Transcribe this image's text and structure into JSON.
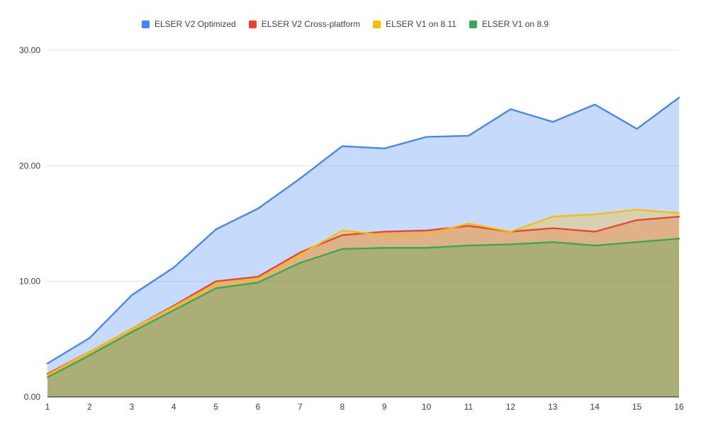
{
  "chart_data": {
    "type": "area",
    "title": "",
    "xlabel": "",
    "ylabel": "",
    "grid": true,
    "legend_position": "top",
    "fill_opacity": 0.3,
    "background_color": "#ffffff",
    "gridline_color": "#e3e3e3",
    "axis_color": "#424242",
    "ylim": [
      0,
      30
    ],
    "y_ticks": [
      {
        "value": 30,
        "label": "30.00"
      },
      {
        "value": 20,
        "label": "20.00"
      },
      {
        "value": 10,
        "label": "10.00"
      },
      {
        "value": 0,
        "label": "0.00"
      }
    ],
    "categories": [
      "1",
      "2",
      "3",
      "4",
      "5",
      "6",
      "7",
      "8",
      "9",
      "10",
      "11",
      "12",
      "13",
      "14",
      "15",
      "16"
    ],
    "series": [
      {
        "name": "ELSER V2 Optimized",
        "color": "#4285F4",
        "values": [
          2.9,
          5.1,
          8.8,
          11.2,
          14.5,
          16.3,
          18.9,
          21.7,
          21.5,
          22.5,
          22.6,
          24.9,
          23.8,
          25.3,
          23.2,
          25.9
        ]
      },
      {
        "name": "ELSER V2 Cross-platform",
        "color": "#EA4335",
        "values": [
          2.0,
          3.9,
          5.9,
          7.9,
          10.0,
          10.4,
          12.5,
          14.0,
          14.3,
          14.4,
          14.8,
          14.3,
          14.6,
          14.3,
          15.3,
          15.6
        ]
      },
      {
        "name": "ELSER V1 on 8.11",
        "color": "#FBBC04",
        "values": [
          1.9,
          3.9,
          5.9,
          7.8,
          9.8,
          10.2,
          12.3,
          14.4,
          14.0,
          14.1,
          15.0,
          14.3,
          15.6,
          15.8,
          16.2,
          15.9
        ]
      },
      {
        "name": "ELSER V1 on 8.9",
        "color": "#34A853",
        "values": [
          1.7,
          3.6,
          5.6,
          7.5,
          9.4,
          9.9,
          11.6,
          12.8,
          12.9,
          12.9,
          13.1,
          13.2,
          13.4,
          13.1,
          13.4,
          13.7
        ]
      }
    ]
  }
}
